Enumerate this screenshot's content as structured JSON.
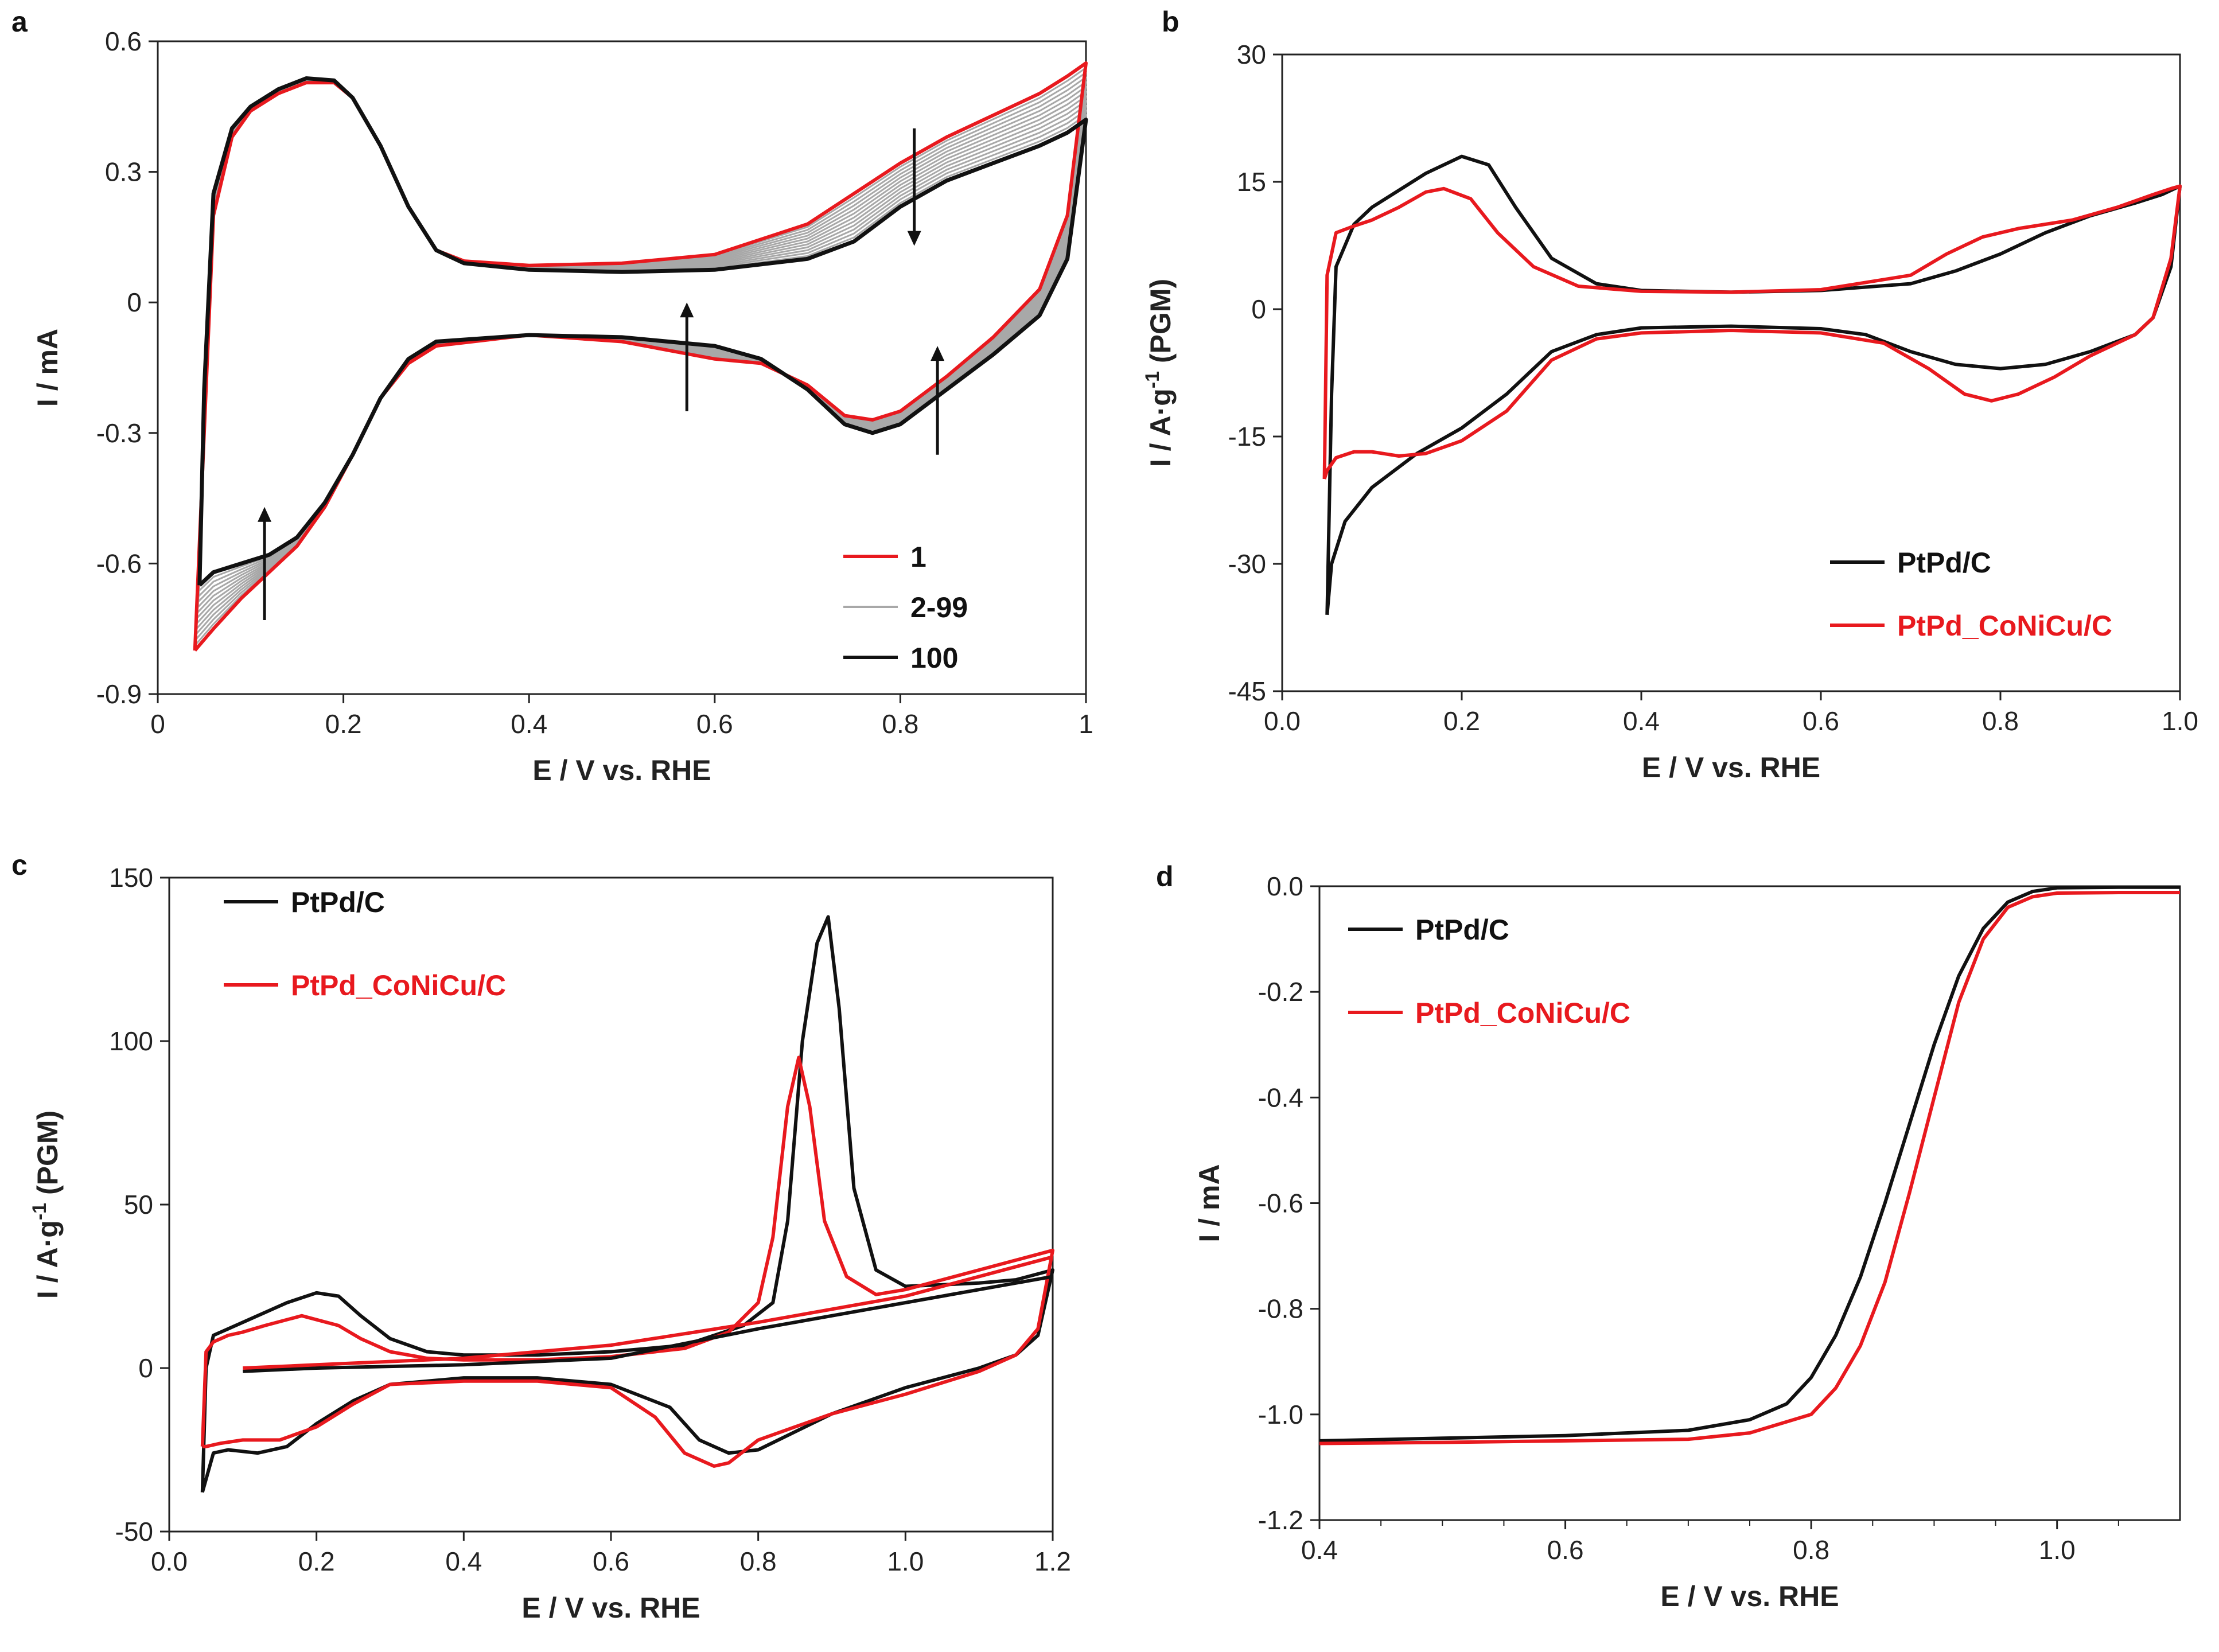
{
  "colors": {
    "black": "#111111",
    "red": "#e8191e",
    "gray": "#a8a8a8"
  },
  "chart_data": [
    {
      "id": "a",
      "panel_label": "a",
      "type": "line",
      "xlabel": "E / V vs. RHE",
      "ylabel": "I / mA",
      "xlim": [
        0,
        1
      ],
      "ylim": [
        -0.9,
        0.6
      ],
      "xticks": [
        0,
        0.2,
        0.4,
        0.6,
        0.8,
        1
      ],
      "xtick_labels": [
        "0",
        "0.2",
        "0.4",
        "0.6",
        "0.8",
        "1"
      ],
      "yticks": [
        -0.9,
        -0.6,
        -0.3,
        0,
        0.3,
        0.6
      ],
      "ytick_labels": [
        "-0.9",
        "-0.6",
        "-0.3",
        "0",
        "0.3",
        "0.6"
      ],
      "legend": [
        {
          "label": "1",
          "color": "#e8191e"
        },
        {
          "label": "2-99",
          "color": "#a8a8a8"
        },
        {
          "label": "100",
          "color": "#111111"
        }
      ],
      "series": [
        {
          "name": "100",
          "color": "#111111",
          "x": [
            0.045,
            0.05,
            0.06,
            0.08,
            0.1,
            0.13,
            0.16,
            0.19,
            0.21,
            0.24,
            0.27,
            0.3,
            0.33,
            0.4,
            0.5,
            0.6,
            0.7,
            0.75,
            0.8,
            0.85,
            0.9,
            0.95,
            0.98,
            1.0,
            1.0,
            0.98,
            0.95,
            0.9,
            0.85,
            0.8,
            0.77,
            0.74,
            0.7,
            0.65,
            0.6,
            0.5,
            0.4,
            0.3,
            0.27,
            0.24,
            0.21,
            0.18,
            0.15,
            0.12,
            0.09,
            0.06,
            0.045
          ],
          "y": [
            -0.65,
            -0.2,
            0.25,
            0.4,
            0.45,
            0.49,
            0.515,
            0.51,
            0.47,
            0.36,
            0.22,
            0.12,
            0.09,
            0.075,
            0.07,
            0.075,
            0.1,
            0.14,
            0.22,
            0.28,
            0.32,
            0.36,
            0.39,
            0.42,
            0.42,
            0.1,
            -0.03,
            -0.12,
            -0.2,
            -0.28,
            -0.3,
            -0.28,
            -0.2,
            -0.13,
            -0.1,
            -0.08,
            -0.075,
            -0.09,
            -0.13,
            -0.22,
            -0.35,
            -0.46,
            -0.54,
            -0.58,
            -0.6,
            -0.62,
            -0.65
          ]
        },
        {
          "name": "1",
          "color": "#e8191e",
          "x": [
            0.04,
            0.05,
            0.06,
            0.08,
            0.1,
            0.13,
            0.16,
            0.19,
            0.21,
            0.24,
            0.27,
            0.3,
            0.33,
            0.4,
            0.5,
            0.6,
            0.7,
            0.75,
            0.8,
            0.85,
            0.9,
            0.95,
            0.98,
            1.0,
            1.0,
            0.98,
            0.95,
            0.9,
            0.85,
            0.8,
            0.77,
            0.74,
            0.7,
            0.65,
            0.6,
            0.5,
            0.4,
            0.3,
            0.27,
            0.24,
            0.21,
            0.18,
            0.15,
            0.12,
            0.09,
            0.06,
            0.04
          ],
          "y": [
            -0.8,
            -0.3,
            0.2,
            0.38,
            0.44,
            0.48,
            0.505,
            0.505,
            0.47,
            0.36,
            0.22,
            0.12,
            0.095,
            0.085,
            0.09,
            0.11,
            0.18,
            0.25,
            0.32,
            0.38,
            0.43,
            0.48,
            0.52,
            0.55,
            0.55,
            0.2,
            0.03,
            -0.08,
            -0.17,
            -0.25,
            -0.27,
            -0.26,
            -0.19,
            -0.14,
            -0.13,
            -0.09,
            -0.075,
            -0.1,
            -0.14,
            -0.22,
            -0.35,
            -0.47,
            -0.56,
            -0.62,
            -0.68,
            -0.75,
            -0.8
          ]
        }
      ],
      "annotations": [
        {
          "type": "arrow",
          "direction": "down",
          "x": 0.815,
          "y_from": 0.4,
          "y_to": 0.13
        },
        {
          "type": "arrow",
          "direction": "up",
          "x": 0.57,
          "y_from": -0.25,
          "y_to": 0.0
        },
        {
          "type": "arrow",
          "direction": "up",
          "x": 0.84,
          "y_from": -0.35,
          "y_to": -0.1
        },
        {
          "type": "arrow",
          "direction": "up",
          "x": 0.115,
          "y_from": -0.73,
          "y_to": -0.47
        }
      ]
    },
    {
      "id": "b",
      "panel_label": "b",
      "type": "line",
      "xlabel": "E / V vs. RHE",
      "ylabel_main": "I / A·g",
      "ylabel_sup": "-1",
      "ylabel_tail": " (PGM)",
      "xlim": [
        0,
        1
      ],
      "ylim": [
        -45,
        30
      ],
      "xticks": [
        0,
        0.2,
        0.4,
        0.6,
        0.8,
        1.0
      ],
      "xtick_labels": [
        "0.0",
        "0.2",
        "0.4",
        "0.6",
        "0.8",
        "1.0"
      ],
      "yticks": [
        -45,
        -30,
        -15,
        0,
        15,
        30
      ],
      "ytick_labels": [
        "-45",
        "-30",
        "-15",
        "0",
        "15",
        "30"
      ],
      "legend": [
        {
          "label": "PtPd/C",
          "color": "#111111"
        },
        {
          "label": "PtPd_CoNiCu/C",
          "color": "#e8191e"
        }
      ],
      "series": [
        {
          "name": "PtPd/C",
          "color": "#111111",
          "x": [
            0.05,
            0.055,
            0.06,
            0.08,
            0.1,
            0.13,
            0.16,
            0.2,
            0.23,
            0.26,
            0.3,
            0.35,
            0.4,
            0.5,
            0.6,
            0.7,
            0.75,
            0.8,
            0.85,
            0.9,
            0.95,
            0.98,
            1.0,
            1.0,
            0.99,
            0.97,
            0.95,
            0.9,
            0.85,
            0.8,
            0.75,
            0.7,
            0.65,
            0.6,
            0.5,
            0.4,
            0.35,
            0.3,
            0.25,
            0.2,
            0.15,
            0.1,
            0.07,
            0.055,
            0.05
          ],
          "y": [
            -36,
            -10,
            5,
            10,
            12,
            14,
            16,
            18,
            17,
            12,
            6,
            3,
            2.2,
            2,
            2.2,
            3,
            4.5,
            6.5,
            9,
            11,
            12.5,
            13.5,
            14.5,
            14.5,
            5,
            -1,
            -3,
            -5,
            -6.5,
            -7,
            -6.5,
            -5,
            -3,
            -2.3,
            -2,
            -2.2,
            -3,
            -5,
            -10,
            -14,
            -17,
            -21,
            -25,
            -30,
            -36
          ]
        },
        {
          "name": "PtPd_CoNiCu/C",
          "color": "#e8191e",
          "x": [
            0.047,
            0.05,
            0.06,
            0.08,
            0.1,
            0.13,
            0.16,
            0.18,
            0.21,
            0.24,
            0.28,
            0.33,
            0.4,
            0.5,
            0.6,
            0.7,
            0.74,
            0.78,
            0.82,
            0.88,
            0.93,
            0.97,
            0.99,
            1.0,
            1.0,
            0.99,
            0.97,
            0.95,
            0.9,
            0.86,
            0.82,
            0.79,
            0.76,
            0.72,
            0.67,
            0.6,
            0.5,
            0.4,
            0.35,
            0.3,
            0.25,
            0.2,
            0.16,
            0.13,
            0.1,
            0.08,
            0.06,
            0.05,
            0.047
          ],
          "y": [
            -20,
            4,
            9,
            9.8,
            10.5,
            12,
            13.8,
            14.2,
            13,
            9,
            5,
            2.7,
            2.1,
            2,
            2.3,
            4,
            6.5,
            8.5,
            9.5,
            10.5,
            12,
            13.5,
            14.2,
            14.5,
            14.5,
            6,
            -1,
            -3,
            -5.5,
            -8,
            -10,
            -10.8,
            -10,
            -7,
            -4,
            -2.8,
            -2.5,
            -2.8,
            -3.5,
            -6,
            -12,
            -15.5,
            -17,
            -17.3,
            -16.8,
            -16.8,
            -17.5,
            -19,
            -20
          ]
        }
      ]
    },
    {
      "id": "c",
      "panel_label": "c",
      "type": "line",
      "xlabel": "E / V vs. RHE",
      "ylabel_main": "I / A·g",
      "ylabel_sup": "-1",
      "ylabel_tail": " (PGM)",
      "xlim": [
        0,
        1.2
      ],
      "ylim": [
        -50,
        150
      ],
      "xticks": [
        0,
        0.2,
        0.4,
        0.6,
        0.8,
        1.0,
        1.2
      ],
      "xtick_labels": [
        "0.0",
        "0.2",
        "0.4",
        "0.6",
        "0.8",
        "1.0",
        "1.2"
      ],
      "yticks": [
        -50,
        0,
        50,
        100,
        150
      ],
      "ytick_labels": [
        "-50",
        "0",
        "50",
        "100",
        "150"
      ],
      "legend": [
        {
          "label": "PtPd/C",
          "color": "#111111"
        },
        {
          "label": "PtPd_CoNiCu/C",
          "color": "#e8191e"
        }
      ],
      "series": [
        {
          "name": "PtPd/C",
          "color": "#111111",
          "x": [
            0.045,
            0.05,
            0.06,
            0.08,
            0.1,
            0.13,
            0.16,
            0.2,
            0.23,
            0.26,
            0.3,
            0.35,
            0.4,
            0.5,
            0.6,
            0.7,
            0.78,
            0.82,
            0.84,
            0.86,
            0.88,
            0.895,
            0.91,
            0.93,
            0.96,
            1.0,
            1.05,
            1.1,
            1.15,
            1.2,
            1.2,
            1.18,
            1.15,
            1.1,
            1.0,
            0.9,
            0.8,
            0.76,
            0.72,
            0.68,
            0.6,
            0.5,
            0.4,
            0.3,
            0.25,
            0.2,
            0.16,
            0.12,
            0.08,
            0.06,
            0.045
          ],
          "y": [
            -38,
            0,
            10,
            12,
            14,
            17,
            20,
            23,
            22,
            16,
            9,
            5,
            4,
            4,
            5,
            7,
            13,
            20,
            45,
            100,
            130,
            138,
            110,
            55,
            30,
            25,
            25.5,
            26,
            27,
            30,
            30,
            10,
            4,
            0,
            -6,
            -14,
            -25,
            -26,
            -22,
            -12,
            -5,
            -3,
            -3,
            -5,
            -10,
            -17,
            -24,
            -26,
            -25,
            -26,
            -38
          ]
        },
        {
          "name": "PtPd_CoNiCu/C",
          "color": "#e8191e",
          "x": [
            0.045,
            0.05,
            0.06,
            0.08,
            0.1,
            0.13,
            0.18,
            0.23,
            0.26,
            0.3,
            0.35,
            0.4,
            0.5,
            0.6,
            0.7,
            0.76,
            0.8,
            0.82,
            0.84,
            0.855,
            0.87,
            0.89,
            0.92,
            0.96,
            1.0,
            1.05,
            1.1,
            1.15,
            1.2,
            1.2,
            1.18,
            1.15,
            1.1,
            1.0,
            0.9,
            0.85,
            0.8,
            0.76,
            0.74,
            0.7,
            0.66,
            0.6,
            0.5,
            0.4,
            0.3,
            0.25,
            0.2,
            0.15,
            0.1,
            0.07,
            0.05,
            0.045
          ],
          "y": [
            -24,
            5,
            8,
            10,
            11,
            13,
            16,
            13,
            9,
            5,
            3,
            2.5,
            2.5,
            3.5,
            6,
            11,
            20,
            40,
            80,
            95,
            80,
            45,
            28,
            22.5,
            24,
            27,
            30,
            33,
            36,
            36,
            12,
            4,
            -1,
            -8,
            -14,
            -18,
            -22,
            -29,
            -30,
            -26,
            -15,
            -6,
            -4,
            -4,
            -5,
            -11,
            -18,
            -22,
            -22,
            -23,
            -24,
            -24
          ]
        },
        {
          "name": "PtPd/C (anodic baseline)",
          "color": "#111111",
          "x": [
            0.1,
            0.2,
            0.4,
            0.6,
            0.8,
            1.0,
            1.2
          ],
          "y": [
            -1,
            0,
            1,
            3,
            12,
            20,
            28
          ]
        },
        {
          "name": "PtPd_CoNiCu/C (anodic baseline)",
          "color": "#e8191e",
          "x": [
            0.1,
            0.2,
            0.4,
            0.6,
            0.8,
            1.0,
            1.2
          ],
          "y": [
            0,
            1,
            3,
            7,
            14,
            22,
            34
          ]
        }
      ]
    },
    {
      "id": "d",
      "panel_label": "d",
      "type": "line",
      "xlabel": "E / V vs. RHE",
      "ylabel": "I / mA",
      "xlim": [
        0.4,
        1.1
      ],
      "ylim": [
        -1.2,
        0.0
      ],
      "xticks": [
        0.4,
        0.6,
        0.8,
        1.0
      ],
      "xtick_labels": [
        "0.4",
        "0.6",
        "0.8",
        "1.0"
      ],
      "yticks": [
        -1.2,
        -1.0,
        -0.8,
        -0.6,
        -0.4,
        -0.2,
        0.0
      ],
      "ytick_labels": [
        "-1.2",
        "-1.0",
        "-0.8",
        "-0.6",
        "-0.4",
        "-0.2",
        "0.0"
      ],
      "legend": [
        {
          "label": "PtPd/C",
          "color": "#111111"
        },
        {
          "label": "PtPd_CoNiCu/C",
          "color": "#e8191e"
        }
      ],
      "series": [
        {
          "name": "PtPd/C",
          "color": "#111111",
          "x": [
            0.4,
            0.5,
            0.6,
            0.7,
            0.75,
            0.78,
            0.8,
            0.82,
            0.84,
            0.86,
            0.88,
            0.9,
            0.92,
            0.94,
            0.96,
            0.98,
            1.0,
            1.05,
            1.1
          ],
          "y": [
            -1.05,
            -1.045,
            -1.04,
            -1.03,
            -1.01,
            -0.98,
            -0.93,
            -0.85,
            -0.74,
            -0.6,
            -0.45,
            -0.3,
            -0.17,
            -0.08,
            -0.03,
            -0.01,
            -0.003,
            -0.002,
            -0.002
          ]
        },
        {
          "name": "PtPd_CoNiCu/C",
          "color": "#e8191e",
          "x": [
            0.4,
            0.5,
            0.6,
            0.7,
            0.75,
            0.8,
            0.82,
            0.84,
            0.86,
            0.88,
            0.9,
            0.92,
            0.94,
            0.96,
            0.98,
            1.0,
            1.05,
            1.1
          ],
          "y": [
            -1.055,
            -1.053,
            -1.05,
            -1.047,
            -1.035,
            -1.0,
            -0.95,
            -0.87,
            -0.75,
            -0.58,
            -0.4,
            -0.22,
            -0.1,
            -0.04,
            -0.02,
            -0.013,
            -0.012,
            -0.012
          ]
        }
      ]
    }
  ]
}
